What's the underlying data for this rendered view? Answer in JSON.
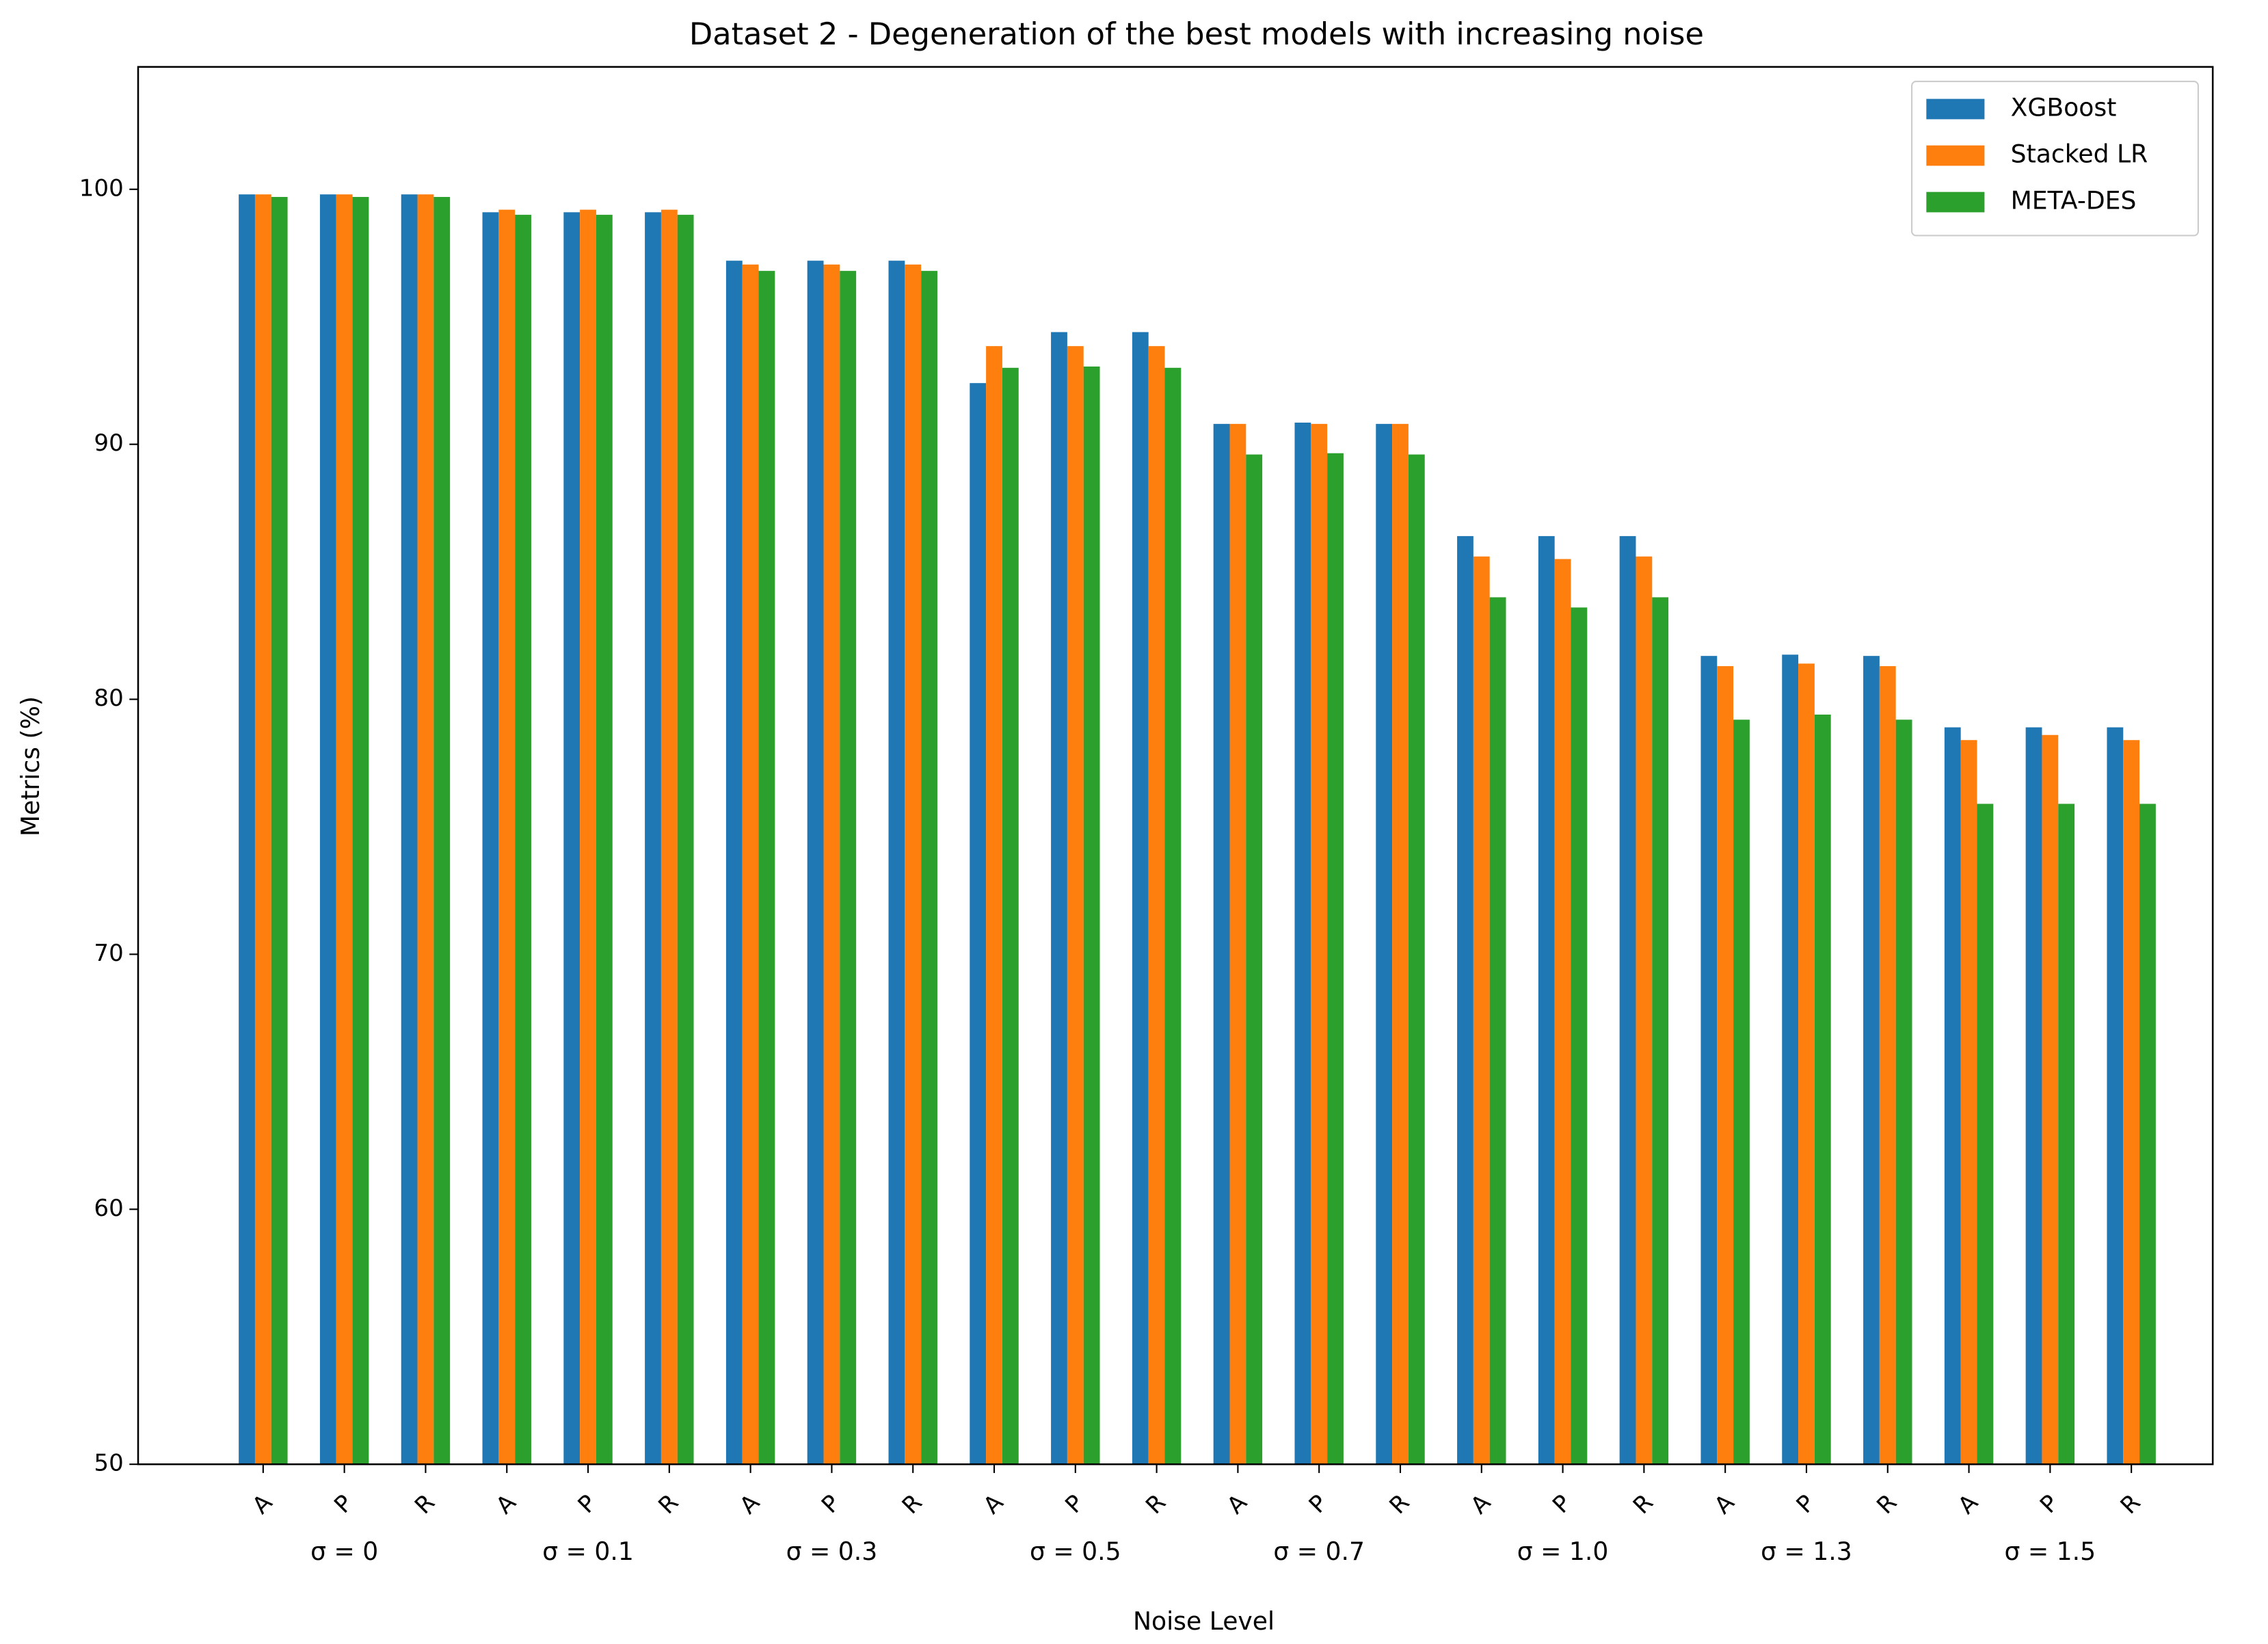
{
  "chart_data": {
    "type": "bar",
    "title": "Dataset 2 - Degeneration of the best models with increasing noise",
    "x_label": "Noise Level",
    "y_label": "Metrics (%)",
    "categories": [
      "A",
      "P",
      "R",
      "A",
      "P",
      "R",
      "A",
      "P",
      "R",
      "A",
      "P",
      "R",
      "A",
      "P",
      "R",
      "A",
      "P",
      "R",
      "A",
      "P",
      "R",
      "A",
      "P",
      "R"
    ],
    "groups": [
      "σ = 0",
      "σ = 0.1",
      "σ = 0.3",
      "σ = 0.5",
      "σ = 0.7",
      "σ = 1.0",
      "σ = 1.3",
      "σ = 1.5"
    ],
    "series": [
      {
        "name": "XGBoost",
        "color": "#1f77b4",
        "values": [
          99.8,
          99.8,
          99.8,
          99.1,
          99.1,
          99.1,
          97.2,
          97.2,
          97.2,
          92.4,
          94.4,
          94.4,
          90.8,
          90.85,
          90.8,
          86.4,
          86.4,
          86.4,
          81.7,
          81.75,
          81.7,
          78.9,
          78.9,
          78.9
        ]
      },
      {
        "name": "Stacked LR",
        "color": "#ff7f0e",
        "values": [
          99.8,
          99.8,
          99.8,
          99.2,
          99.2,
          99.2,
          97.05,
          97.05,
          97.05,
          93.85,
          93.85,
          93.85,
          90.8,
          90.8,
          90.8,
          85.6,
          85.5,
          85.6,
          81.3,
          81.4,
          81.3,
          78.4,
          78.6,
          78.4
        ]
      },
      {
        "name": "META-DES",
        "color": "#2ca02c",
        "values": [
          99.7,
          99.7,
          99.7,
          99.0,
          99.0,
          99.0,
          96.8,
          96.8,
          96.8,
          93.0,
          93.05,
          93.0,
          89.6,
          89.65,
          89.6,
          84.0,
          83.6,
          84.0,
          79.2,
          79.4,
          79.2,
          75.9,
          75.9,
          75.9
        ]
      }
    ],
    "ylim": [
      50,
      104.8
    ],
    "yticks": [
      50,
      60,
      70,
      80,
      90,
      100
    ],
    "grid": false,
    "legend": "upper right"
  }
}
